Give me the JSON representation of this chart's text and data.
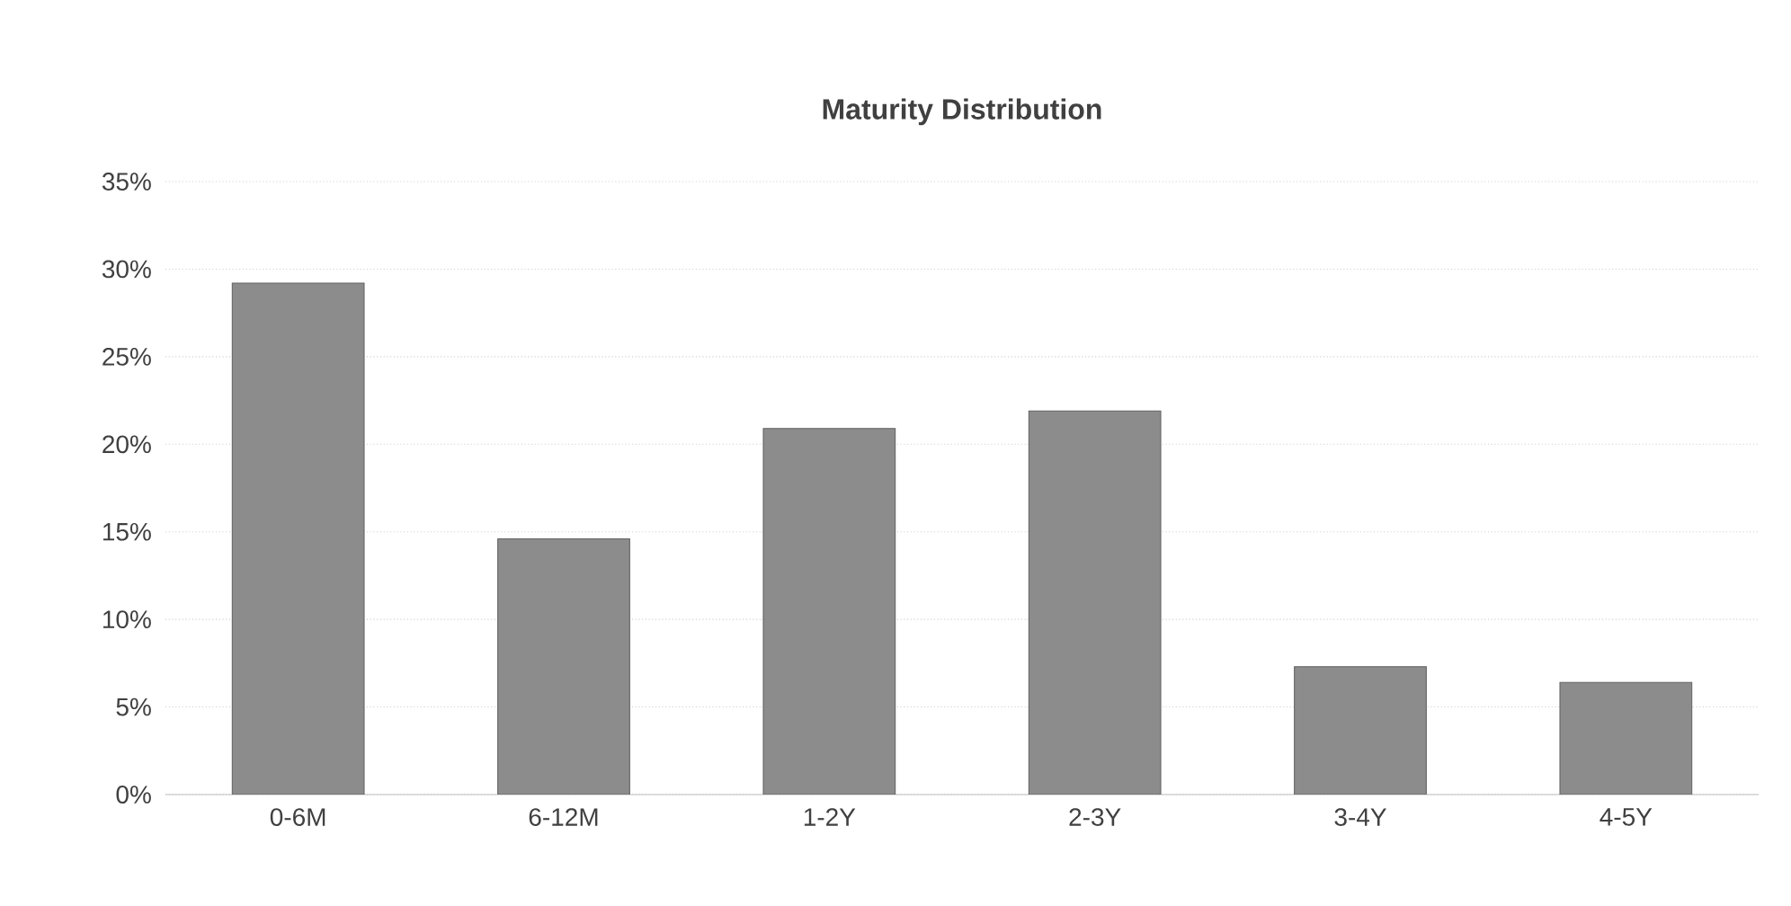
{
  "chart_data": {
    "type": "bar",
    "title": "Maturity Distribution",
    "categories": [
      "0-6M",
      "6-12M",
      "1-2Y",
      "2-3Y",
      "3-4Y",
      "4-5Y"
    ],
    "values": [
      29.2,
      14.6,
      20.9,
      21.9,
      7.3,
      6.4
    ],
    "color": "#8c8c8c",
    "ylim": [
      0,
      35
    ],
    "yticks": [
      {
        "value": 0,
        "label": "0%"
      },
      {
        "value": 5,
        "label": "5%"
      },
      {
        "value": 10,
        "label": "10%"
      },
      {
        "value": 15,
        "label": "15%"
      },
      {
        "value": 20,
        "label": "20%"
      },
      {
        "value": 25,
        "label": "25%"
      },
      {
        "value": 30,
        "label": "30%"
      },
      {
        "value": 35,
        "label": "35%"
      }
    ],
    "grid": "y"
  }
}
